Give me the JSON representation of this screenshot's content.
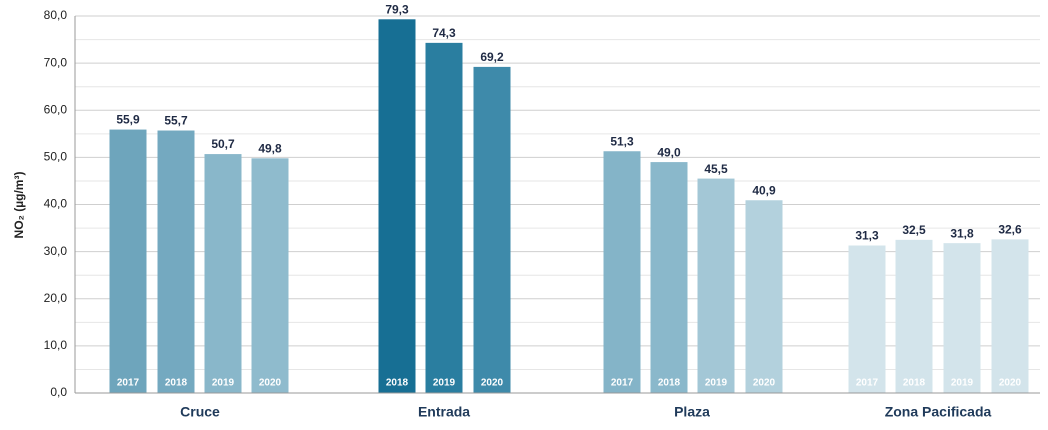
{
  "chart_data": {
    "type": "grouped-bar",
    "y_label": "NO₂ (µg/m³)",
    "ylim": [
      0,
      80
    ],
    "yticks": [
      {
        "value": 0,
        "label": "0,0"
      },
      {
        "value": 10,
        "label": "10,0"
      },
      {
        "value": 20,
        "label": "20,0"
      },
      {
        "value": 30,
        "label": "30,0"
      },
      {
        "value": 40,
        "label": "40,0"
      },
      {
        "value": 50,
        "label": "50,0"
      },
      {
        "value": 60,
        "label": "60,0"
      },
      {
        "value": 70,
        "label": "70,0"
      },
      {
        "value": 80,
        "label": "80,0"
      }
    ],
    "minor_yticks": [
      5,
      15,
      25,
      35,
      45,
      55,
      65,
      75
    ],
    "grid": true,
    "groups": [
      {
        "name": "Cruce",
        "years": [
          "2017",
          "2018",
          "2019",
          "2020"
        ],
        "values": [
          55.9,
          55.7,
          50.7,
          49.8
        ],
        "value_labels": [
          "55,9",
          "55,7",
          "50,7",
          "49,8"
        ],
        "colors": [
          "#6ea5bc",
          "#74a9c0",
          "#89b7ca",
          "#8fbbcd"
        ]
      },
      {
        "name": "Entrada",
        "years": [
          "2018",
          "2019",
          "2020"
        ],
        "values": [
          79.3,
          74.3,
          69.2
        ],
        "value_labels": [
          "79,3",
          "74,3",
          "69,2"
        ],
        "colors": [
          "#176f94",
          "#2a7ea0",
          "#3e8aaa"
        ]
      },
      {
        "name": "Plaza",
        "years": [
          "2017",
          "2018",
          "2019",
          "2020"
        ],
        "values": [
          51.3,
          49.0,
          45.5,
          40.9
        ],
        "value_labels": [
          "51,3",
          "49,0",
          "45,5",
          "40,9"
        ],
        "colors": [
          "#84b4c8",
          "#8ab8cb",
          "#a3c7d6",
          "#b3d1dd"
        ]
      },
      {
        "name": "Zona Pacificada",
        "years": [
          "2017",
          "2018",
          "2019",
          "2020"
        ],
        "values": [
          31.3,
          32.5,
          31.8,
          32.6
        ],
        "value_labels": [
          "31,3",
          "32,5",
          "31,8",
          "32,6"
        ],
        "colors": [
          "#d3e4eb",
          "#d3e4eb",
          "#d3e4eb",
          "#d3e4eb"
        ]
      }
    ]
  }
}
